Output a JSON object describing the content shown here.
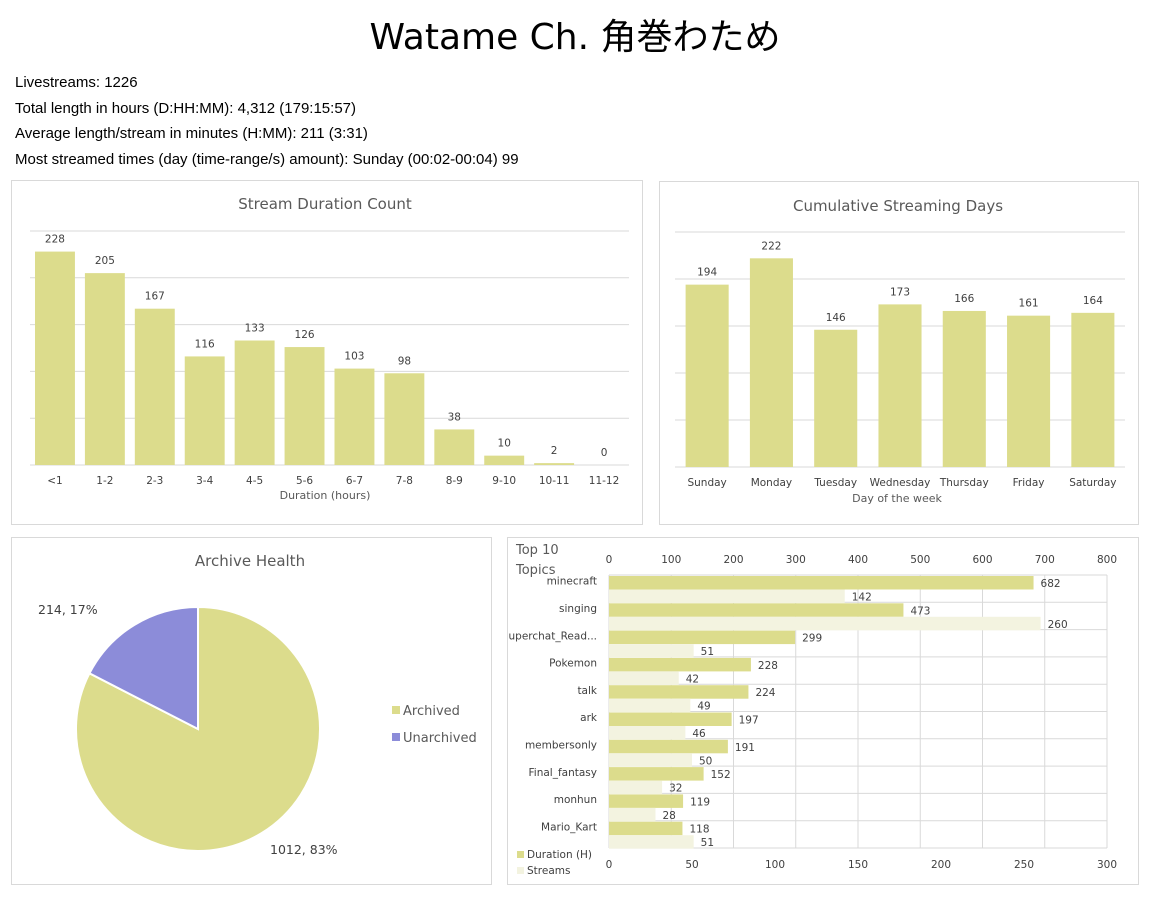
{
  "page": {
    "title": "Watame Ch. 角巻わため",
    "stats": [
      "Livestreams: 1226",
      "Total length in hours (D:HH:MM): 4,312 (179:15:57)",
      "Average length/stream in minutes (H:MM): 211 (3:31)",
      "Most streamed times (day (time-range/s) amount): Sunday (00:02-00:04) 99"
    ]
  },
  "colors": {
    "bar": "#dcdc8c",
    "bar_light": "#f3f3e0",
    "unarchived": "#8c8cd9",
    "grid": "#d9d9d9",
    "border": "#d9d9d9"
  },
  "chart_data": [
    {
      "type": "bar",
      "title": "Stream Duration Count",
      "xlabel": "Duration (hours)",
      "ylabel": "",
      "categories": [
        "<1",
        "1-2",
        "2-3",
        "3-4",
        "4-5",
        "5-6",
        "6-7",
        "7-8",
        "8-9",
        "9-10",
        "10-11",
        "11-12"
      ],
      "values": [
        228,
        205,
        167,
        116,
        133,
        126,
        103,
        98,
        38,
        10,
        2,
        0
      ],
      "ylim": [
        0,
        250
      ],
      "grid": true,
      "data_labels": true
    },
    {
      "type": "bar",
      "title": "Cumulative Streaming Days",
      "xlabel": "Day of the week",
      "ylabel": "",
      "categories": [
        "Sunday",
        "Monday",
        "Tuesday",
        "Wednesday",
        "Thursday",
        "Friday",
        "Saturday"
      ],
      "values": [
        194,
        222,
        146,
        173,
        166,
        161,
        164
      ],
      "ylim": [
        0,
        250
      ],
      "grid": true,
      "data_labels": true
    },
    {
      "type": "pie",
      "title": "Archive Health",
      "labels": [
        "Archived",
        "Unarchived"
      ],
      "values": [
        1012,
        214
      ],
      "percent_labels": [
        "83%",
        "17%"
      ],
      "legend": "right"
    },
    {
      "type": "bar",
      "orientation": "horizontal",
      "title": "Top 10 Topics",
      "categories": [
        "minecraft",
        "singing",
        "Superchat_Read...",
        "Pokemon",
        "talk",
        "ark",
        "membersonly",
        "Final_fantasy",
        "monhun",
        "Mario_Kart"
      ],
      "series": [
        {
          "name": "Duration (H)",
          "axis": "top",
          "values": [
            682,
            473,
            299,
            228,
            224,
            197,
            191,
            152,
            119,
            118
          ]
        },
        {
          "name": "Streams",
          "axis": "bottom",
          "values": [
            142,
            260,
            51,
            42,
            49,
            46,
            50,
            32,
            28,
            51
          ]
        }
      ],
      "top_axis": {
        "range": [
          0,
          800
        ],
        "ticks": [
          0,
          100,
          200,
          300,
          400,
          500,
          600,
          700,
          800
        ]
      },
      "bottom_axis": {
        "range": [
          0,
          300
        ],
        "ticks": [
          0,
          50,
          100,
          150,
          200,
          250,
          300
        ]
      },
      "grid": true,
      "legend": "bottom-left"
    }
  ]
}
